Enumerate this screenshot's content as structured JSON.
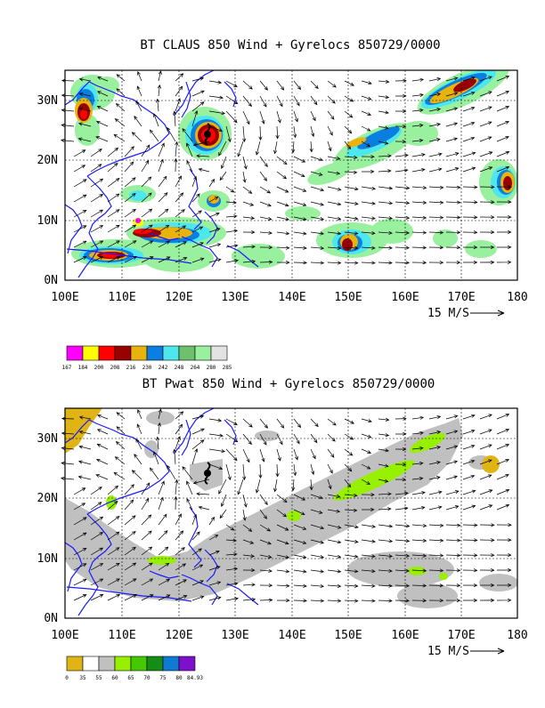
{
  "panels": [
    {
      "title": "BT CLAUS 850 Wind + Gyrelocs 850729/0000",
      "x_ticks": [
        "100E",
        "110E",
        "120E",
        "130E",
        "140E",
        "150E",
        "160E",
        "170E",
        "180"
      ],
      "y_ticks": [
        "0N",
        "10N",
        "20N",
        "30N"
      ],
      "scale_label": "15 M/S",
      "legend": {
        "colors": [
          "#ff00ff",
          "#ffff00",
          "#ff0000",
          "#990000",
          "#e8b30c",
          "#0a7fe0",
          "#4ee7ee",
          "#6ebf6e",
          "#99f09e",
          "#e3e3e3"
        ],
        "labels": [
          "167",
          "184",
          "200",
          "208",
          "216",
          "230",
          "242",
          "248",
          "264",
          "280",
          "285"
        ]
      }
    },
    {
      "title": "BT Pwat 850 Wind + Gyrelocs 850729/0000",
      "x_ticks": [
        "100E",
        "110E",
        "120E",
        "130E",
        "140E",
        "150E",
        "160E",
        "170E",
        "180"
      ],
      "y_ticks": [
        "0N",
        "10N",
        "20N",
        "30N"
      ],
      "scale_label": "15 M/S",
      "legend": {
        "colors": [
          "#e0b414",
          "#ffffff",
          "#c0c0c0",
          "#96f000",
          "#46c800",
          "#158c15",
          "#0f7ad2",
          "#7e10cc"
        ],
        "labels": [
          "0",
          "35",
          "55",
          "60",
          "65",
          "70",
          "75",
          "80",
          "84.93"
        ]
      }
    }
  ],
  "map": {
    "lon_range": [
      100,
      180
    ],
    "lat_range": [
      0,
      35
    ],
    "coast_color": "#1a1aff",
    "grid_style": "dashed"
  }
}
